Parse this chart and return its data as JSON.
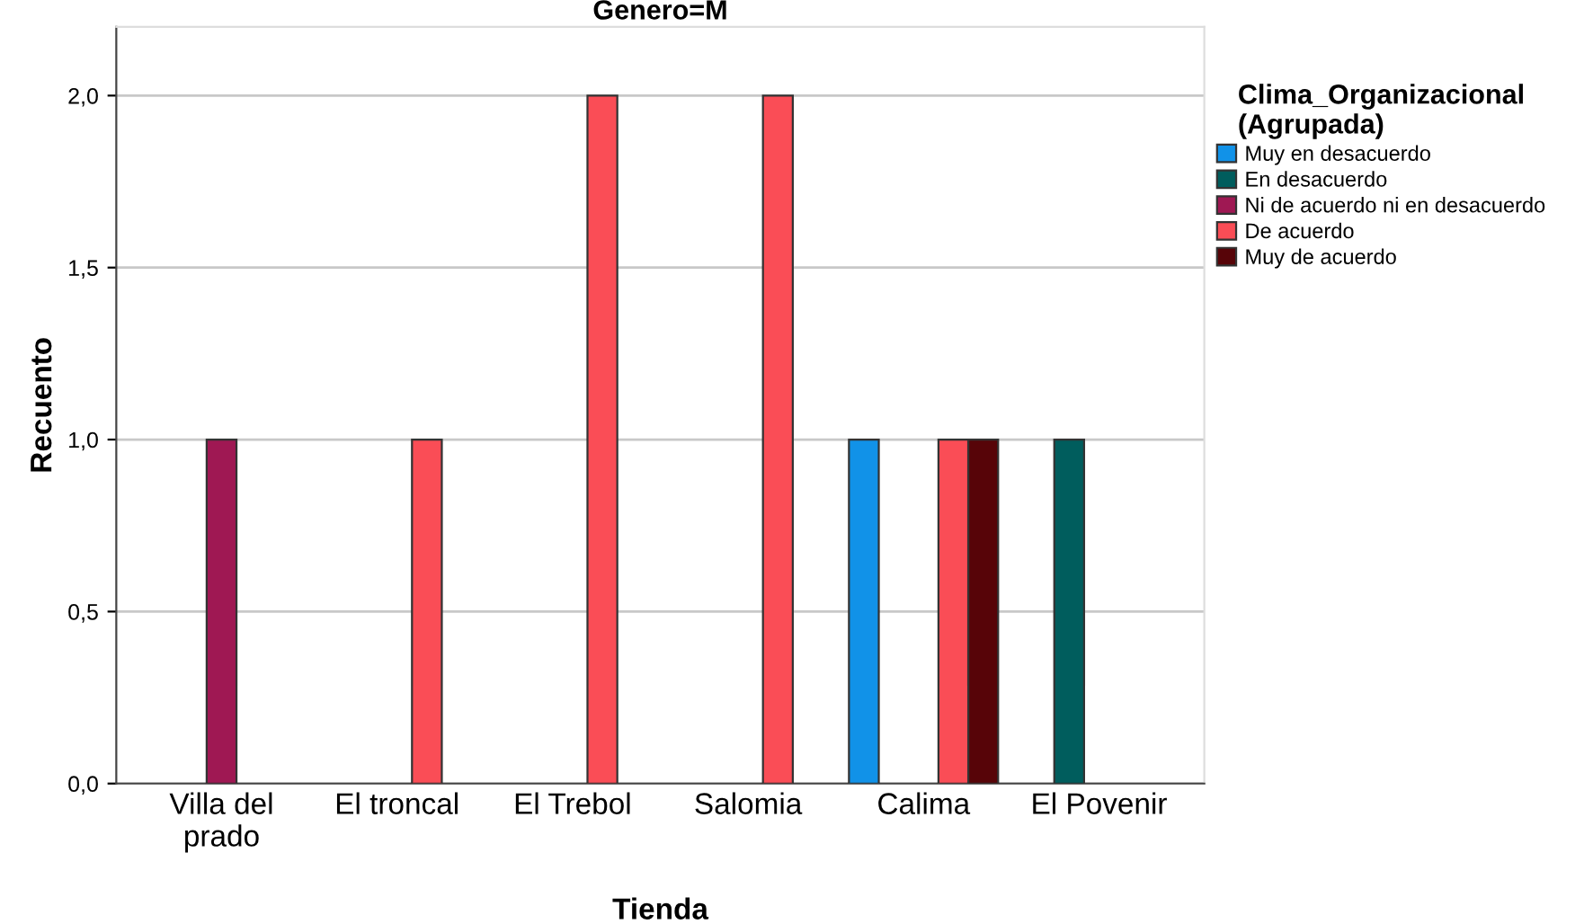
{
  "chart_data": {
    "type": "bar",
    "title": "Genero=M",
    "xlabel": "Tienda",
    "ylabel": "Recuento",
    "legend_title": "Clima_Organizacional\n(Agrupada)",
    "categories": [
      "Villa del\nprado",
      "El troncal",
      "El Trebol",
      "Salomia",
      "Calima",
      "El Povenir"
    ],
    "series": [
      {
        "name": "Muy en desacuerdo",
        "color": "#1192e8",
        "values": [
          null,
          null,
          null,
          null,
          1,
          null
        ]
      },
      {
        "name": "En desacuerdo",
        "color": "#005d5d",
        "values": [
          null,
          null,
          null,
          null,
          null,
          1
        ]
      },
      {
        "name": "Ni de acuerdo ni en desacuerdo",
        "color": "#9f1853",
        "values": [
          1,
          null,
          null,
          null,
          null,
          null
        ]
      },
      {
        "name": "De acuerdo",
        "color": "#fa4d56",
        "values": [
          null,
          1,
          2,
          2,
          1,
          null
        ]
      },
      {
        "name": "Muy de acuerdo",
        "color": "#570408",
        "values": [
          null,
          null,
          null,
          null,
          1,
          null
        ]
      }
    ],
    "ylim": [
      0,
      2.2
    ],
    "yticks": [
      {
        "value": 0,
        "label": "0,0"
      },
      {
        "value": 0.5,
        "label": "0,5"
      },
      {
        "value": 1,
        "label": "1,0"
      },
      {
        "value": 1.5,
        "label": "1,5"
      },
      {
        "value": 2,
        "label": "2,0"
      }
    ],
    "grid": "y",
    "legend": "top right"
  }
}
